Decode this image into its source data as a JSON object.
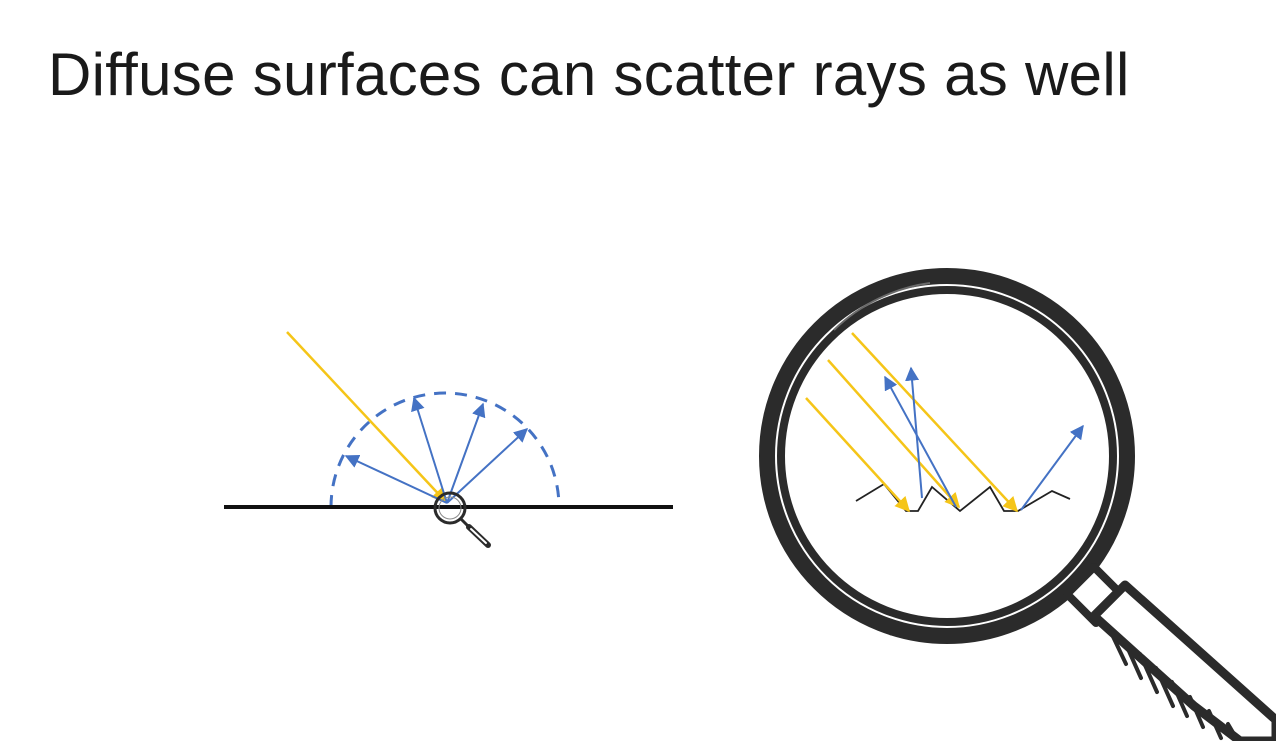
{
  "slide": {
    "title": "Diffuse surfaces can scatter rays as well"
  },
  "colors": {
    "incident_ray": "#f5c518",
    "scattered_ray": "#4472c4",
    "surface": "#111111",
    "magnifier": "#2b2b2b",
    "background": "#ffffff"
  },
  "icons": {
    "small_magnifier": "magnifier-icon",
    "large_magnifier": "magnifier-icon"
  }
}
